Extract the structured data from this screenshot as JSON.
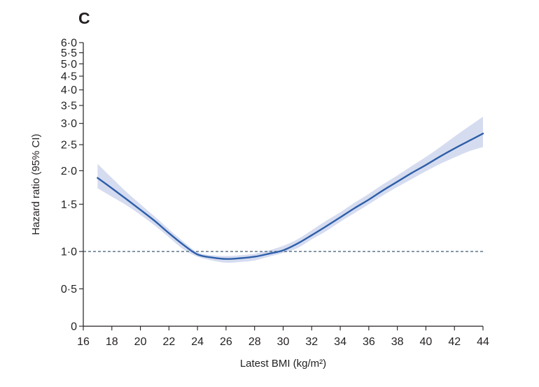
{
  "panel_label": "C",
  "colors": {
    "line": "#2e5fa8",
    "band": "#d6dcf0",
    "reference": "#3f5a73",
    "axis": "#231f20"
  },
  "chart_data": {
    "type": "line",
    "title": "",
    "xlabel": "Latest BMI (kg/m²)",
    "ylabel": "Hazard ratio (95% CI)",
    "xlim": [
      16,
      44
    ],
    "ylim": [
      0,
      6.0
    ],
    "y_scale": "log-like (compressed above 1.0)",
    "x_ticks": [
      {
        "value": 16,
        "label": "16"
      },
      {
        "value": 18,
        "label": "18"
      },
      {
        "value": 20,
        "label": "20"
      },
      {
        "value": 22,
        "label": "22"
      },
      {
        "value": 24,
        "label": "24"
      },
      {
        "value": 26,
        "label": "26"
      },
      {
        "value": 28,
        "label": "28"
      },
      {
        "value": 30,
        "label": "30"
      },
      {
        "value": 32,
        "label": "32"
      },
      {
        "value": 34,
        "label": "34"
      },
      {
        "value": 36,
        "label": "36"
      },
      {
        "value": 38,
        "label": "38"
      },
      {
        "value": 40,
        "label": "40"
      },
      {
        "value": 42,
        "label": "42"
      },
      {
        "value": 44,
        "label": "44"
      }
    ],
    "y_ticks": [
      {
        "value": 0,
        "label": "0"
      },
      {
        "value": 0.5,
        "label": "0·5"
      },
      {
        "value": 1.0,
        "label": "1·0"
      },
      {
        "value": 1.5,
        "label": "1·5"
      },
      {
        "value": 2.0,
        "label": "2·0"
      },
      {
        "value": 2.5,
        "label": "2·5"
      },
      {
        "value": 3.0,
        "label": "3·0"
      },
      {
        "value": 3.5,
        "label": "3·5"
      },
      {
        "value": 4.0,
        "label": "4·0"
      },
      {
        "value": 4.5,
        "label": "4·5"
      },
      {
        "value": 5.0,
        "label": "5·0"
      },
      {
        "value": 5.5,
        "label": "5·5"
      },
      {
        "value": 6.0,
        "label": "6·0"
      }
    ],
    "reference_line": {
      "y": 1.0,
      "style": "dashed"
    },
    "series": [
      {
        "x": [
          17,
          18,
          19,
          20,
          21,
          22,
          23,
          24,
          25,
          26,
          27,
          28,
          29,
          30,
          31,
          32,
          33,
          34,
          35,
          36,
          37,
          38,
          39,
          40,
          41,
          42,
          43,
          44
        ],
        "y": [
          1.88,
          1.72,
          1.57,
          1.43,
          1.3,
          1.17,
          1.06,
          0.96,
          0.92,
          0.9,
          0.91,
          0.93,
          0.97,
          1.01,
          1.07,
          1.15,
          1.24,
          1.34,
          1.45,
          1.56,
          1.69,
          1.82,
          1.96,
          2.1,
          2.26,
          2.42,
          2.58,
          2.75
        ],
        "lower": [
          1.72,
          1.6,
          1.49,
          1.37,
          1.25,
          1.13,
          1.02,
          0.93,
          0.88,
          0.85,
          0.86,
          0.88,
          0.93,
          0.98,
          1.03,
          1.11,
          1.19,
          1.29,
          1.39,
          1.5,
          1.62,
          1.74,
          1.86,
          1.99,
          2.12,
          2.24,
          2.36,
          2.45
        ],
        "upper": [
          2.12,
          1.88,
          1.67,
          1.5,
          1.35,
          1.21,
          1.09,
          0.99,
          0.95,
          0.94,
          0.95,
          0.97,
          1.01,
          1.05,
          1.11,
          1.2,
          1.3,
          1.4,
          1.52,
          1.64,
          1.78,
          1.92,
          2.08,
          2.25,
          2.45,
          2.68,
          2.92,
          3.18
        ]
      }
    ],
    "grid": false,
    "legend": "none"
  }
}
